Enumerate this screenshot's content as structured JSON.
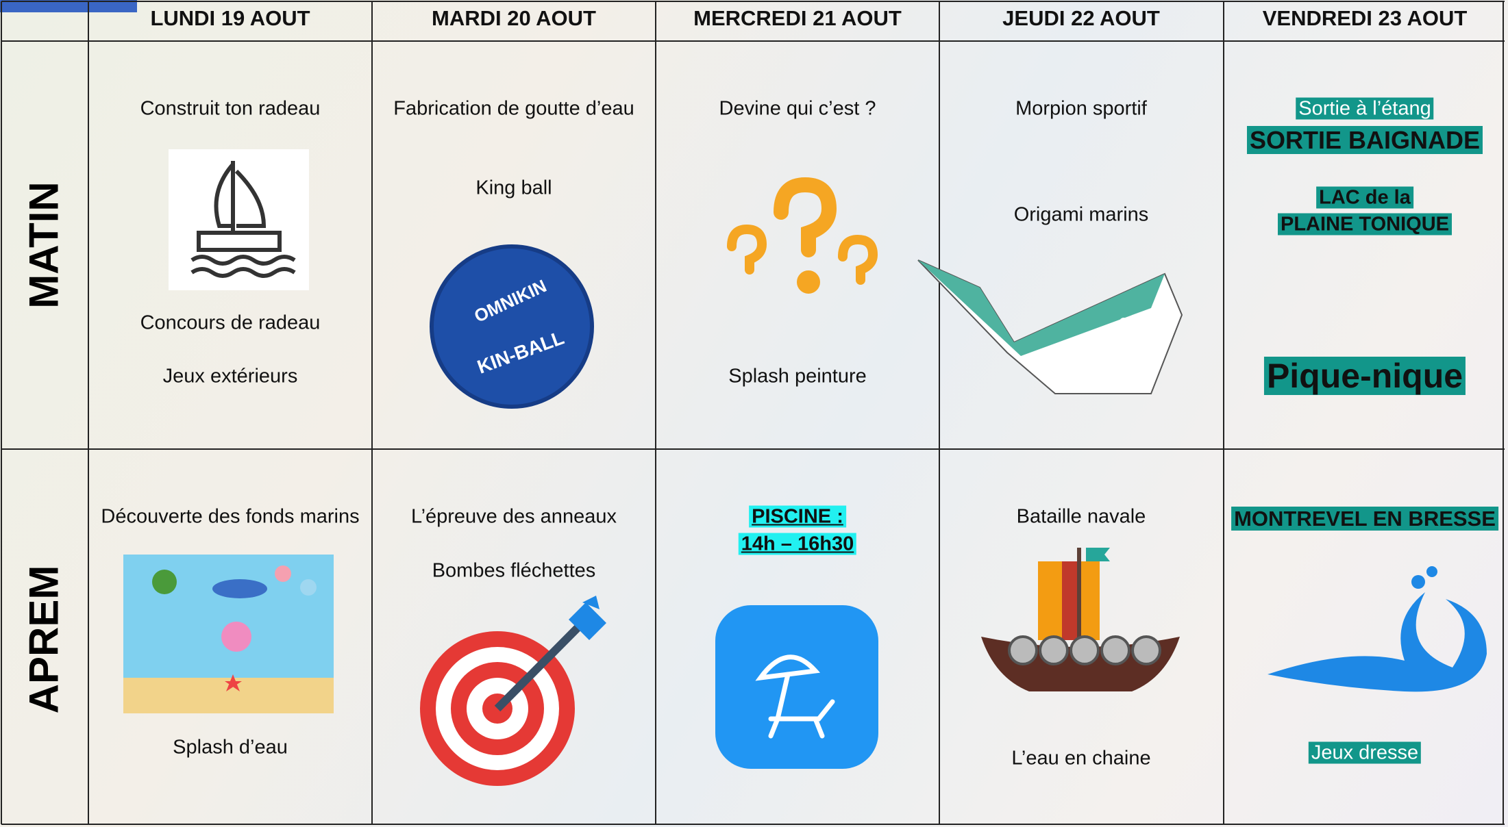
{
  "header": {
    "days": [
      "LUNDI 19 AOUT",
      "MARDI 20 AOUT",
      "MERCREDI 21 AOUT",
      "JEUDI 22 AOUT",
      "VENDREDI 23 AOUT"
    ]
  },
  "rows": [
    {
      "label": "MATIN",
      "cells": [
        [
          "Construit ton radeau",
          "Concours de radeau",
          "Jeux extérieurs"
        ],
        [
          "Fabrication de goutte d’eau",
          "King ball"
        ],
        [
          "Devine qui c’est ?",
          "Splash peinture"
        ],
        [
          "Morpion sportif",
          "Origami marins"
        ],
        [
          "Sortie à l’étang",
          "SORTIE BAIGNADE",
          "LAC de la",
          "PLAINE TONIQUE",
          "Pique-nique"
        ]
      ]
    },
    {
      "label": "APREM",
      "cells": [
        [
          "Découverte des fonds marins",
          "Splash d’eau"
        ],
        [
          "L’épreuve des anneaux",
          "Bombes fléchettes"
        ],
        [
          "PISCINE :",
          "14h – 16h30"
        ],
        [
          "Bataille navale",
          "L’eau en chaine"
        ],
        [
          "MONTREVEL EN BRESSE",
          "Jeux dresse"
        ]
      ]
    }
  ],
  "icons": {
    "ball": [
      "OMNIKIN",
      "KIN-BALL"
    ]
  }
}
